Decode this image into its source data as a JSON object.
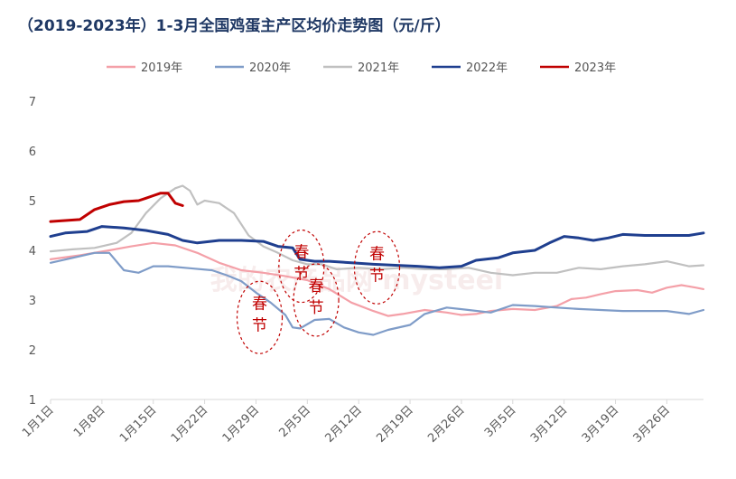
{
  "title": "（2019-2023年）1-3月全国鸡蛋主产区均价走势图（元/斤）",
  "watermark": "我的农产品网 mysteel",
  "annotation_label": "春节",
  "chart_data": {
    "type": "line",
    "title": "（2019-2023年）1-3月全国鸡蛋主产区均价走势图（元/斤）",
    "xlabel": "",
    "ylabel": "",
    "ylim": [
      1,
      7
    ],
    "yticks": [
      1,
      2,
      3,
      4,
      5,
      6,
      7
    ],
    "xlim": [
      0,
      89
    ],
    "xticks": [
      {
        "day": 0,
        "label": "1月1日"
      },
      {
        "day": 7,
        "label": "1月8日"
      },
      {
        "day": 14,
        "label": "1月15日"
      },
      {
        "day": 21,
        "label": "1月22日"
      },
      {
        "day": 28,
        "label": "1月29日"
      },
      {
        "day": 35,
        "label": "2月5日"
      },
      {
        "day": 42,
        "label": "2月12日"
      },
      {
        "day": 49,
        "label": "2月19日"
      },
      {
        "day": 56,
        "label": "2月26日"
      },
      {
        "day": 63,
        "label": "3月5日"
      },
      {
        "day": 70,
        "label": "3月12日"
      },
      {
        "day": 77,
        "label": "3月19日"
      },
      {
        "day": 84,
        "label": "3月26日"
      }
    ],
    "grid": false,
    "legend_position": "top",
    "series": [
      {
        "name": "2019年",
        "color": "#f4a0a8",
        "points": [
          [
            0,
            3.82
          ],
          [
            4,
            3.9
          ],
          [
            8,
            4.0
          ],
          [
            11,
            4.08
          ],
          [
            14,
            4.15
          ],
          [
            17,
            4.1
          ],
          [
            20,
            3.95
          ],
          [
            23,
            3.75
          ],
          [
            26,
            3.6
          ],
          [
            29,
            3.55
          ],
          [
            32,
            3.48
          ],
          [
            35,
            3.4
          ],
          [
            38,
            3.22
          ],
          [
            41,
            2.95
          ],
          [
            44,
            2.78
          ],
          [
            46,
            2.68
          ],
          [
            48,
            2.72
          ],
          [
            51,
            2.8
          ],
          [
            54,
            2.75
          ],
          [
            56,
            2.7
          ],
          [
            58,
            2.72
          ],
          [
            60,
            2.78
          ],
          [
            63,
            2.82
          ],
          [
            66,
            2.8
          ],
          [
            69,
            2.88
          ],
          [
            71,
            3.02
          ],
          [
            73,
            3.05
          ],
          [
            75,
            3.12
          ],
          [
            77,
            3.18
          ],
          [
            80,
            3.2
          ],
          [
            82,
            3.15
          ],
          [
            84,
            3.25
          ],
          [
            86,
            3.3
          ],
          [
            88,
            3.25
          ],
          [
            89,
            3.22
          ]
        ]
      },
      {
        "name": "2020年",
        "color": "#7f9cc8",
        "points": [
          [
            0,
            3.75
          ],
          [
            3,
            3.85
          ],
          [
            6,
            3.95
          ],
          [
            8,
            3.95
          ],
          [
            10,
            3.6
          ],
          [
            12,
            3.55
          ],
          [
            14,
            3.68
          ],
          [
            16,
            3.68
          ],
          [
            19,
            3.64
          ],
          [
            22,
            3.6
          ],
          [
            24,
            3.5
          ],
          [
            26,
            3.38
          ],
          [
            28,
            3.15
          ],
          [
            30,
            2.95
          ],
          [
            32,
            2.7
          ],
          [
            33,
            2.45
          ],
          [
            34,
            2.43
          ],
          [
            36,
            2.6
          ],
          [
            38,
            2.62
          ],
          [
            40,
            2.45
          ],
          [
            42,
            2.35
          ],
          [
            44,
            2.3
          ],
          [
            46,
            2.4
          ],
          [
            49,
            2.5
          ],
          [
            51,
            2.72
          ],
          [
            54,
            2.85
          ],
          [
            57,
            2.8
          ],
          [
            60,
            2.75
          ],
          [
            63,
            2.9
          ],
          [
            66,
            2.88
          ],
          [
            69,
            2.85
          ],
          [
            72,
            2.82
          ],
          [
            75,
            2.8
          ],
          [
            78,
            2.78
          ],
          [
            81,
            2.78
          ],
          [
            84,
            2.78
          ],
          [
            87,
            2.72
          ],
          [
            89,
            2.8
          ]
        ]
      },
      {
        "name": "2021年",
        "color": "#c0c0c0",
        "points": [
          [
            0,
            3.98
          ],
          [
            3,
            4.02
          ],
          [
            6,
            4.05
          ],
          [
            9,
            4.15
          ],
          [
            11,
            4.35
          ],
          [
            13,
            4.75
          ],
          [
            15,
            5.05
          ],
          [
            17,
            5.25
          ],
          [
            18,
            5.3
          ],
          [
            19,
            5.2
          ],
          [
            20,
            4.92
          ],
          [
            21,
            5.0
          ],
          [
            23,
            4.95
          ],
          [
            25,
            4.75
          ],
          [
            27,
            4.3
          ],
          [
            29,
            4.08
          ],
          [
            31,
            3.95
          ],
          [
            33,
            3.8
          ],
          [
            35,
            3.72
          ],
          [
            37,
            3.72
          ],
          [
            39,
            3.62
          ],
          [
            42,
            3.65
          ],
          [
            45,
            3.62
          ],
          [
            48,
            3.65
          ],
          [
            51,
            3.62
          ],
          [
            54,
            3.62
          ],
          [
            57,
            3.65
          ],
          [
            60,
            3.55
          ],
          [
            63,
            3.5
          ],
          [
            66,
            3.55
          ],
          [
            69,
            3.55
          ],
          [
            72,
            3.65
          ],
          [
            75,
            3.62
          ],
          [
            78,
            3.68
          ],
          [
            81,
            3.72
          ],
          [
            84,
            3.78
          ],
          [
            87,
            3.68
          ],
          [
            89,
            3.7
          ]
        ]
      },
      {
        "name": "2022年",
        "color": "#1f3f8f",
        "points": [
          [
            0,
            4.28
          ],
          [
            2,
            4.35
          ],
          [
            5,
            4.38
          ],
          [
            7,
            4.48
          ],
          [
            10,
            4.45
          ],
          [
            13,
            4.4
          ],
          [
            16,
            4.32
          ],
          [
            18,
            4.2
          ],
          [
            20,
            4.15
          ],
          [
            23,
            4.2
          ],
          [
            26,
            4.2
          ],
          [
            29,
            4.18
          ],
          [
            31,
            4.08
          ],
          [
            33,
            4.05
          ],
          [
            34,
            3.82
          ],
          [
            36,
            3.78
          ],
          [
            38,
            3.78
          ],
          [
            41,
            3.75
          ],
          [
            44,
            3.72
          ],
          [
            47,
            3.7
          ],
          [
            50,
            3.68
          ],
          [
            53,
            3.65
          ],
          [
            56,
            3.68
          ],
          [
            58,
            3.8
          ],
          [
            61,
            3.85
          ],
          [
            63,
            3.95
          ],
          [
            66,
            4.0
          ],
          [
            68,
            4.15
          ],
          [
            70,
            4.28
          ],
          [
            72,
            4.25
          ],
          [
            74,
            4.2
          ],
          [
            76,
            4.25
          ],
          [
            78,
            4.32
          ],
          [
            81,
            4.3
          ],
          [
            84,
            4.3
          ],
          [
            87,
            4.3
          ],
          [
            89,
            4.35
          ]
        ]
      },
      {
        "name": "2023年",
        "color": "#c00000",
        "points": [
          [
            0,
            4.58
          ],
          [
            2,
            4.6
          ],
          [
            4,
            4.62
          ],
          [
            6,
            4.82
          ],
          [
            8,
            4.92
          ],
          [
            10,
            4.98
          ],
          [
            12,
            5.0
          ],
          [
            13,
            5.05
          ],
          [
            14,
            5.1
          ],
          [
            15,
            5.15
          ],
          [
            16,
            5.15
          ],
          [
            17,
            4.95
          ],
          [
            18,
            4.9
          ]
        ]
      }
    ],
    "annotations": [
      {
        "label": "春节",
        "day": 28.5,
        "y": 2.65
      },
      {
        "label": "春节",
        "day": 34.2,
        "y": 3.68
      },
      {
        "label": "春节",
        "day": 36.2,
        "y": 3.0
      },
      {
        "label": "春节",
        "day": 44.5,
        "y": 3.65
      }
    ]
  }
}
